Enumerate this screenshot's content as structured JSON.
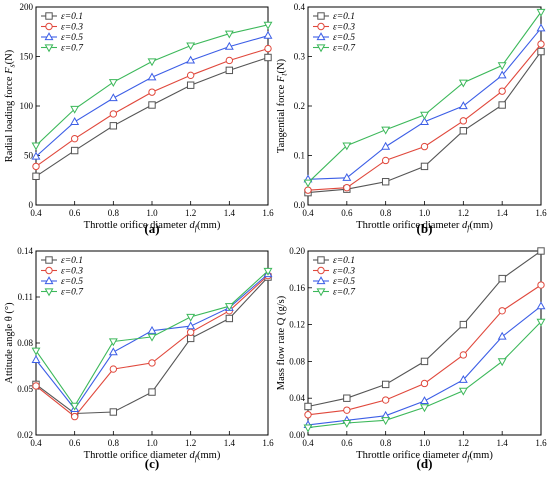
{
  "chart_data": [
    {
      "type": "line",
      "panel": "(a)",
      "xlabel": "Throttle orifice diameter d_f(mm)",
      "ylabel": "Radial loading force F_s(N)",
      "x": [
        0.4,
        0.6,
        0.8,
        1.0,
        1.2,
        1.4,
        1.6
      ],
      "xticks": [
        "0.4",
        "0.6",
        "0.8",
        "1.0",
        "1.2",
        "1.4",
        "1.6"
      ],
      "xlim": [
        0.4,
        1.6
      ],
      "ylim": [
        0,
        200
      ],
      "yticks": [
        "0",
        "50",
        "100",
        "150",
        "200"
      ],
      "legend_position": "top-left",
      "series": [
        {
          "name": "ε=0.1",
          "color": "#555555",
          "marker": "square",
          "values": [
            29,
            55,
            80,
            101,
            121,
            136,
            149
          ]
        },
        {
          "name": "ε=0.3",
          "color": "#e0483c",
          "marker": "circle",
          "values": [
            39,
            67,
            92,
            114,
            131,
            146,
            158
          ]
        },
        {
          "name": "ε=0.5",
          "color": "#3c5ee6",
          "marker": "triangle-up",
          "values": [
            49,
            84,
            108,
            129,
            146,
            160,
            171
          ]
        },
        {
          "name": "ε=0.7",
          "color": "#3cb85a",
          "marker": "triangle-down",
          "values": [
            60,
            97,
            124,
            145,
            161,
            173,
            182
          ]
        }
      ]
    },
    {
      "type": "line",
      "panel": "(b)",
      "xlabel": "Throttle orifice diameter d_f(mm)",
      "ylabel": "Tangential force F_t(N)",
      "x": [
        0.4,
        0.6,
        0.8,
        1.0,
        1.2,
        1.4,
        1.6
      ],
      "xticks": [
        "0.4",
        "0.6",
        "0.8",
        "1.0",
        "1.2",
        "1.4",
        "1.6"
      ],
      "xlim": [
        0.4,
        1.6
      ],
      "ylim": [
        0,
        0.4
      ],
      "yticks": [
        "0.0",
        "0.1",
        "0.2",
        "0.3",
        "0.4"
      ],
      "legend_position": "top-left",
      "series": [
        {
          "name": "ε=0.1",
          "color": "#555555",
          "marker": "square",
          "values": [
            0.025,
            0.032,
            0.047,
            0.078,
            0.15,
            0.202,
            0.31
          ]
        },
        {
          "name": "ε=0.3",
          "color": "#e0483c",
          "marker": "circle",
          "values": [
            0.03,
            0.035,
            0.09,
            0.118,
            0.17,
            0.23,
            0.325
          ]
        },
        {
          "name": "ε=0.5",
          "color": "#3c5ee6",
          "marker": "triangle-up",
          "values": [
            0.052,
            0.055,
            0.118,
            0.168,
            0.2,
            0.262,
            0.357
          ]
        },
        {
          "name": "ε=0.7",
          "color": "#3cb85a",
          "marker": "triangle-down",
          "values": [
            0.045,
            0.12,
            0.152,
            0.182,
            0.247,
            0.282,
            0.39
          ]
        }
      ]
    },
    {
      "type": "line",
      "panel": "(c)",
      "xlabel": "Throttle orifice diameter d_f(mm)",
      "ylabel": "Attitude angle θ (°)",
      "x": [
        0.4,
        0.6,
        0.8,
        1.0,
        1.2,
        1.4,
        1.6
      ],
      "xticks": [
        "0.4",
        "0.6",
        "0.8",
        "1.0",
        "1.2",
        "1.4",
        "1.6"
      ],
      "xlim": [
        0.4,
        1.6
      ],
      "ylim": [
        0.02,
        0.14
      ],
      "yticks": [
        "0.02",
        "0.05",
        "0.08",
        "0.11",
        "0.14"
      ],
      "legend_position": "top-left",
      "series": [
        {
          "name": "ε=0.1",
          "color": "#555555",
          "marker": "square",
          "values": [
            0.053,
            0.034,
            0.035,
            0.048,
            0.083,
            0.096,
            0.123
          ]
        },
        {
          "name": "ε=0.3",
          "color": "#e0483c",
          "marker": "circle",
          "values": [
            0.052,
            0.032,
            0.063,
            0.067,
            0.087,
            0.101,
            0.124
          ]
        },
        {
          "name": "ε=0.5",
          "color": "#3c5ee6",
          "marker": "triangle-up",
          "values": [
            0.069,
            0.037,
            0.074,
            0.088,
            0.091,
            0.103,
            0.125
          ]
        },
        {
          "name": "ε=0.7",
          "color": "#3cb85a",
          "marker": "triangle-down",
          "values": [
            0.075,
            0.039,
            0.081,
            0.084,
            0.097,
            0.104,
            0.127
          ]
        }
      ]
    },
    {
      "type": "line",
      "panel": "(d)",
      "xlabel": "Throttle orifice diameter d_f(mm)",
      "ylabel": "Mass flow rate Q (g/s)",
      "x": [
        0.4,
        0.6,
        0.8,
        1.0,
        1.2,
        1.4,
        1.6
      ],
      "xticks": [
        "0.4",
        "0.6",
        "0.8",
        "1.0",
        "1.2",
        "1.4",
        "1.6"
      ],
      "xlim": [
        0.4,
        1.6
      ],
      "ylim": [
        0,
        0.2
      ],
      "yticks": [
        "0.00",
        "0.04",
        "0.08",
        "0.12",
        "0.16",
        "0.20"
      ],
      "legend_position": "top-left",
      "series": [
        {
          "name": "ε=0.1",
          "color": "#555555",
          "marker": "square",
          "values": [
            0.031,
            0.04,
            0.055,
            0.08,
            0.12,
            0.17,
            0.2
          ]
        },
        {
          "name": "ε=0.3",
          "color": "#e0483c",
          "marker": "circle",
          "values": [
            0.022,
            0.027,
            0.038,
            0.056,
            0.087,
            0.135,
            0.163
          ]
        },
        {
          "name": "ε=0.5",
          "color": "#3c5ee6",
          "marker": "triangle-up",
          "values": [
            0.011,
            0.016,
            0.021,
            0.037,
            0.06,
            0.107,
            0.14
          ]
        },
        {
          "name": "ε=0.7",
          "color": "#3cb85a",
          "marker": "triangle-down",
          "values": [
            0.008,
            0.013,
            0.016,
            0.03,
            0.048,
            0.08,
            0.123
          ]
        }
      ]
    }
  ]
}
